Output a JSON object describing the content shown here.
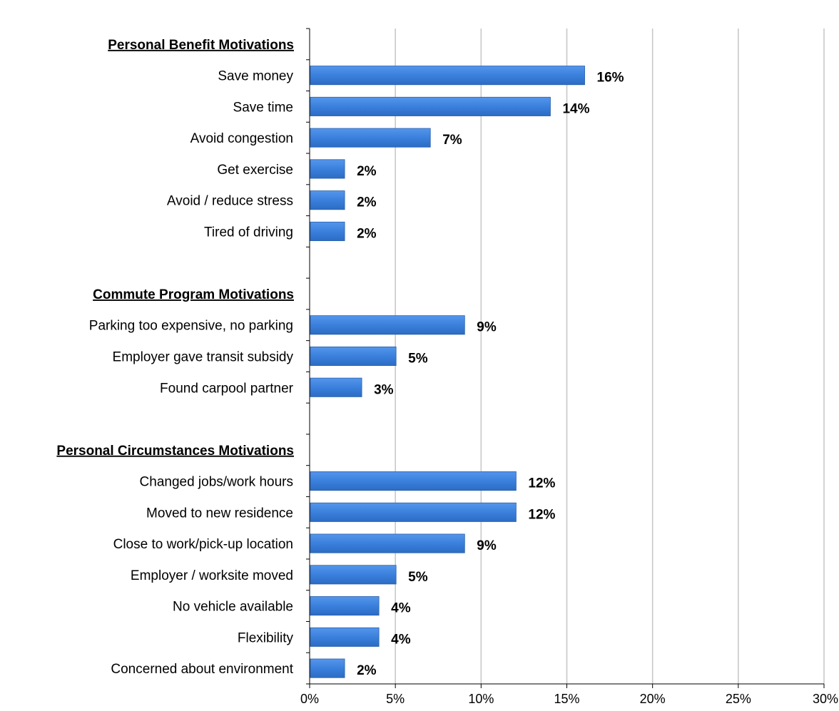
{
  "chart_data": {
    "type": "bar",
    "orientation": "horizontal",
    "title": "",
    "xlabel": "",
    "ylabel": "",
    "xlim": [
      0,
      30
    ],
    "x_ticks": [
      "0%",
      "5%",
      "10%",
      "15%",
      "20%",
      "25%",
      "30%"
    ],
    "grid": "vertical gridlines on",
    "legend": "none",
    "bar_color": "#3a80dc",
    "groups": [
      {
        "heading": "Personal Benefit Motivations",
        "items": [
          {
            "label": "Save money",
            "value": 16,
            "value_label": "16%"
          },
          {
            "label": "Save time",
            "value": 14,
            "value_label": "14%"
          },
          {
            "label": "Avoid congestion",
            "value": 7,
            "value_label": "7%"
          },
          {
            "label": "Get exercise",
            "value": 2,
            "value_label": "2%"
          },
          {
            "label": "Avoid / reduce stress",
            "value": 2,
            "value_label": "2%"
          },
          {
            "label": "Tired of driving",
            "value": 2,
            "value_label": "2%"
          }
        ]
      },
      {
        "heading": "Commute Program Motivations",
        "items": [
          {
            "label": "Parking too expensive, no parking",
            "value": 9,
            "value_label": "9%"
          },
          {
            "label": "Employer gave transit subsidy",
            "value": 5,
            "value_label": "5%"
          },
          {
            "label": "Found carpool partner",
            "value": 3,
            "value_label": "3%"
          }
        ]
      },
      {
        "heading": "Personal Circumstances Motivations",
        "items": [
          {
            "label": "Changed jobs/work hours",
            "value": 12,
            "value_label": "12%"
          },
          {
            "label": "Moved to new residence",
            "value": 12,
            "value_label": "12%"
          },
          {
            "label": "Close to work/pick-up location",
            "value": 9,
            "value_label": "9%"
          },
          {
            "label": "Employer / worksite moved",
            "value": 5,
            "value_label": "5%"
          },
          {
            "label": "No vehicle available",
            "value": 4,
            "value_label": "4%"
          },
          {
            "label": "Flexibility",
            "value": 4,
            "value_label": "4%"
          },
          {
            "label": "Concerned about environment",
            "value": 2,
            "value_label": "2%"
          }
        ]
      }
    ]
  }
}
